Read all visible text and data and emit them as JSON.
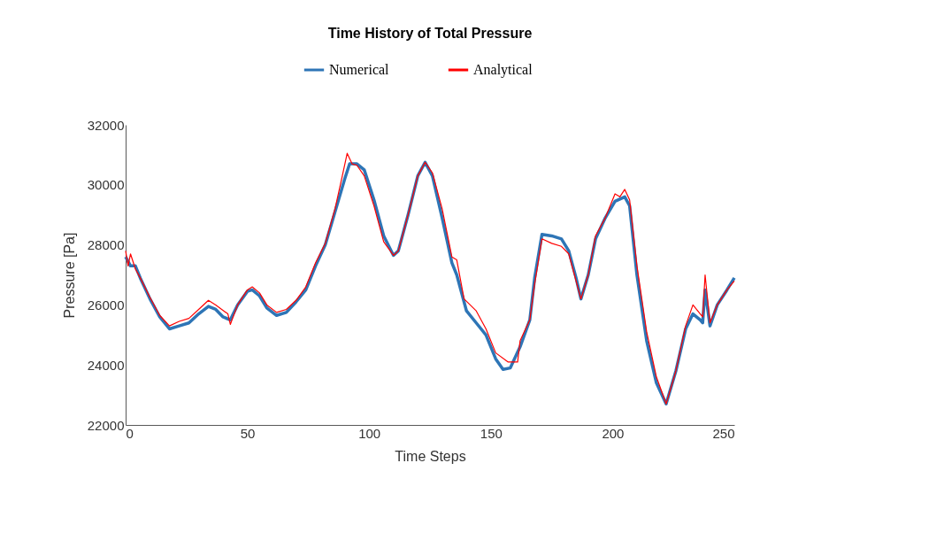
{
  "chart_data": {
    "type": "line",
    "title": "Time History of Total Pressure",
    "xlabel": "Time Steps",
    "ylabel": "Pressure [Pa]",
    "xlim": [
      0,
      250
    ],
    "xticks": [
      0,
      50,
      100,
      150,
      200,
      250
    ],
    "ylim": [
      22000,
      32000
    ],
    "yticks": [
      22000,
      24000,
      26000,
      28000,
      30000,
      32000
    ],
    "grid": false,
    "legend": "top",
    "marker": "none",
    "line_style": "solid",
    "series": [
      {
        "name": "Numerical",
        "color": "#2e75b6",
        "x": [
          0,
          2,
          4,
          6,
          10,
          14,
          18,
          22,
          26,
          30,
          34,
          37,
          40,
          43,
          46,
          50,
          52,
          55,
          58,
          62,
          66,
          70,
          74,
          78,
          82,
          86,
          90,
          92,
          95,
          98,
          102,
          106,
          110,
          112,
          116,
          120,
          123,
          126,
          130,
          134,
          136,
          140,
          144,
          148,
          152,
          155,
          158,
          162,
          166,
          168,
          171,
          175,
          179,
          182,
          185,
          187,
          190,
          193,
          197,
          201,
          205,
          207,
          210,
          214,
          218,
          222,
          226,
          230,
          233,
          236,
          237,
          238,
          240,
          243,
          247,
          250
        ],
        "values": [
          27600,
          27300,
          27300,
          26900,
          26200,
          25600,
          25200,
          25300,
          25400,
          25700,
          25950,
          25850,
          25600,
          25500,
          26000,
          26450,
          26500,
          26300,
          25900,
          25650,
          25750,
          26100,
          26500,
          27300,
          28000,
          29100,
          30200,
          30700,
          30700,
          30500,
          29500,
          28300,
          27650,
          27800,
          29000,
          30300,
          30750,
          30300,
          28900,
          27400,
          27000,
          25800,
          25400,
          25000,
          24200,
          23850,
          23900,
          24600,
          25500,
          26900,
          28350,
          28300,
          28200,
          27800,
          26900,
          26200,
          27000,
          28200,
          28900,
          29450,
          29600,
          29300,
          27000,
          24800,
          23400,
          22700,
          23800,
          25200,
          25700,
          25500,
          25400,
          26500,
          25300,
          26000,
          26500,
          26900
        ]
      },
      {
        "name": "Analytical",
        "color": "#ff0000",
        "x": [
          0,
          1,
          2,
          4,
          6,
          10,
          14,
          18,
          22,
          26,
          30,
          34,
          37,
          42,
          43,
          46,
          50,
          52,
          55,
          58,
          62,
          66,
          70,
          74,
          78,
          82,
          86,
          89,
          91,
          93,
          95,
          98,
          102,
          106,
          110,
          112,
          116,
          120,
          123,
          126,
          130,
          134,
          136,
          139,
          144,
          148,
          152,
          157,
          161,
          162,
          166,
          168,
          171,
          175,
          179,
          182,
          185,
          187,
          190,
          193,
          197,
          201,
          203,
          205,
          207,
          210,
          214,
          218,
          222,
          226,
          230,
          233,
          236,
          237,
          238,
          240,
          243,
          247,
          250
        ],
        "values": [
          27800,
          27300,
          27700,
          27200,
          26900,
          26250,
          25650,
          25300,
          25450,
          25550,
          25850,
          26150,
          26000,
          25700,
          25350,
          26000,
          26500,
          26600,
          26400,
          26000,
          25750,
          25850,
          26150,
          26600,
          27400,
          28050,
          29200,
          30300,
          31050,
          30700,
          30650,
          30300,
          29300,
          28100,
          27650,
          27800,
          29000,
          30300,
          30750,
          30400,
          29200,
          27600,
          27500,
          26200,
          25800,
          25200,
          24400,
          24100,
          24100,
          24800,
          25500,
          26700,
          28200,
          28050,
          27950,
          27700,
          26800,
          26200,
          27000,
          28300,
          28900,
          29700,
          29600,
          29850,
          29500,
          27300,
          25100,
          23600,
          22700,
          23800,
          25300,
          26000,
          25700,
          25600,
          27000,
          25400,
          26000,
          26500,
          26800
        ]
      }
    ]
  }
}
